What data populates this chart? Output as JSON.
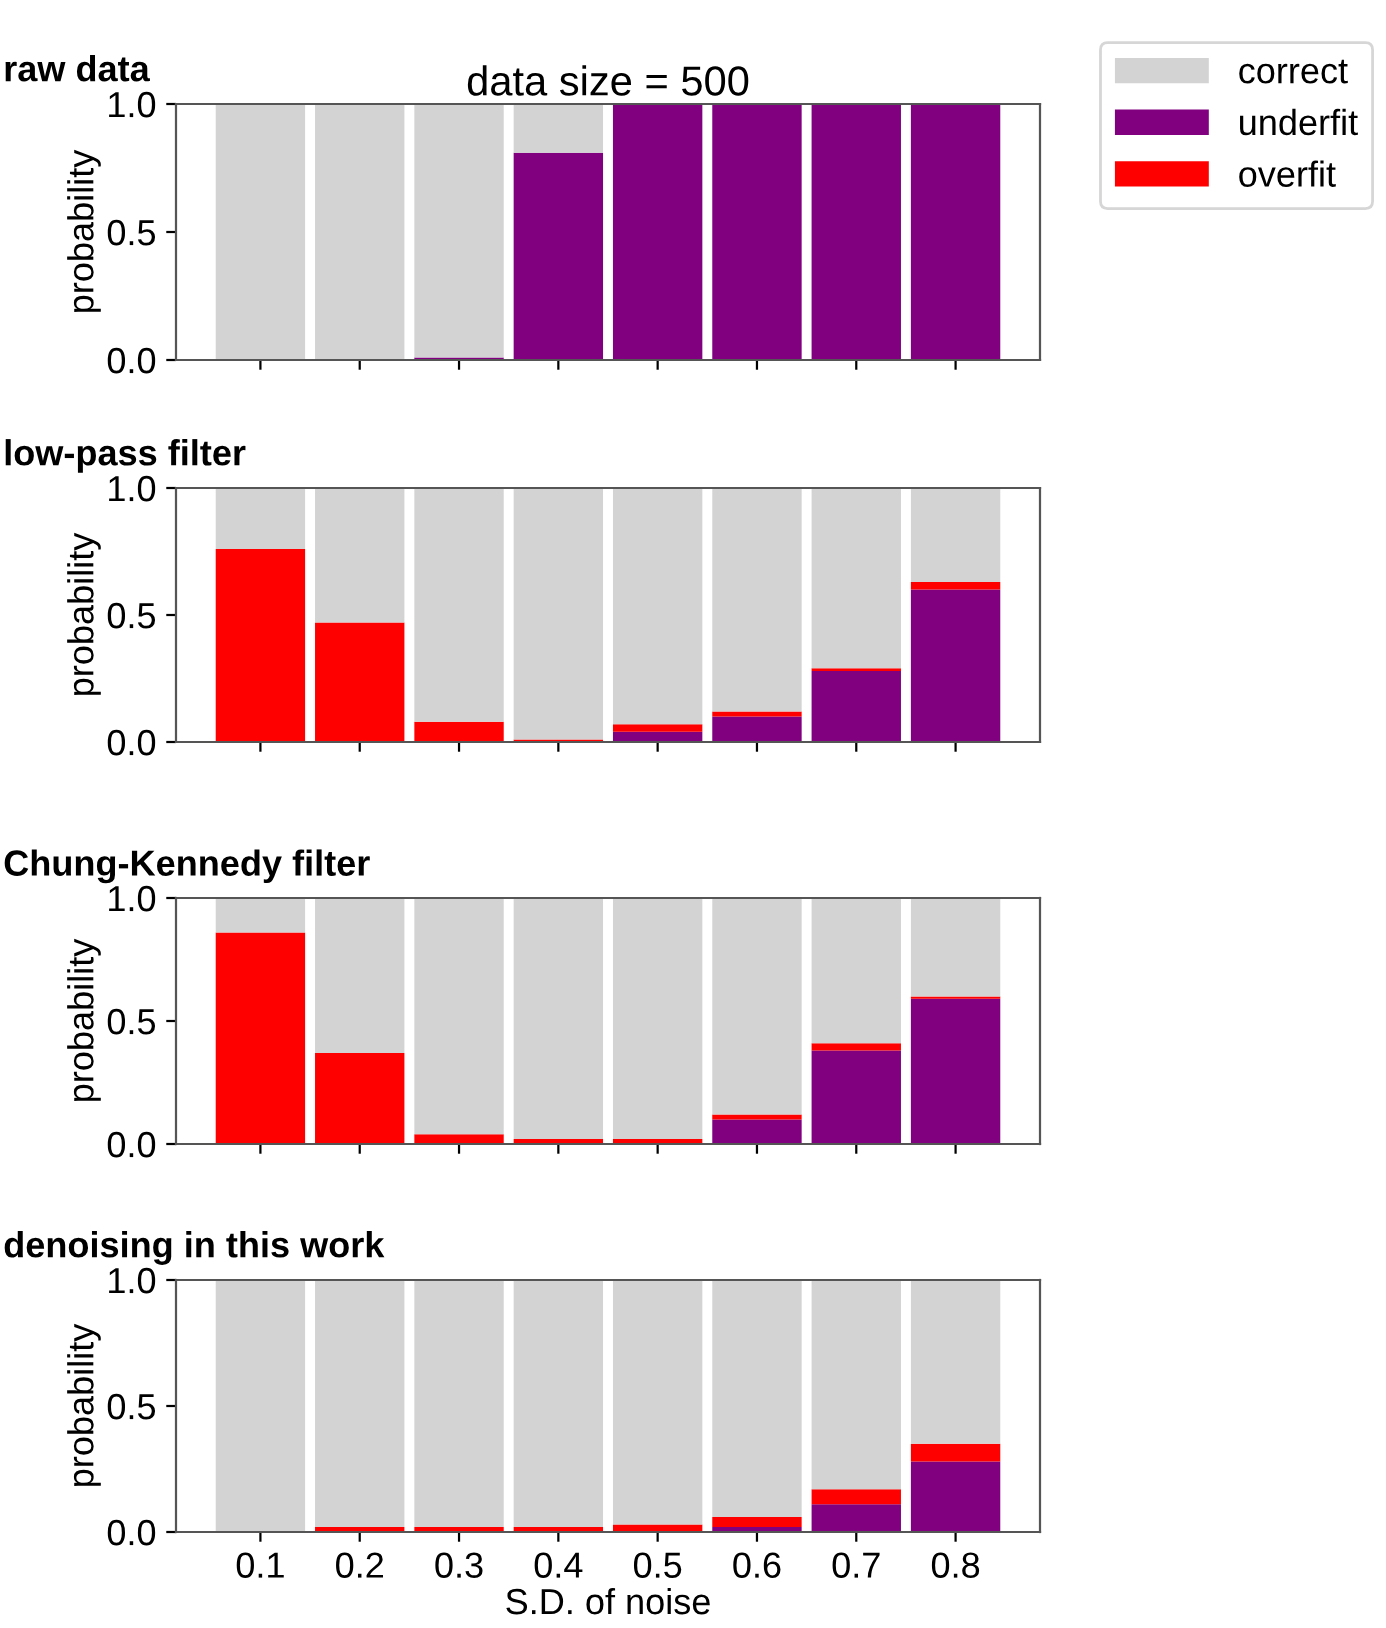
{
  "chart_data": [
    {
      "type": "bar",
      "title": "raw data",
      "subtitle": "data size = 500",
      "ylabel": "probability",
      "stacked": true,
      "legend": "top right",
      "tick_labels": "y",
      "categories": [
        "0.1",
        "0.2",
        "0.3",
        "0.4",
        "0.5",
        "0.6",
        "0.7",
        "0.8"
      ],
      "ylim": [
        0,
        1
      ],
      "yticks": [
        {
          "value": 0,
          "label": "0.0"
        },
        {
          "value": 0.5,
          "label": "0.5"
        },
        {
          "value": 1,
          "label": "1.0"
        }
      ],
      "series": [
        {
          "name": "underfit",
          "color": "#800080",
          "values": [
            0,
            0,
            0.01,
            0.81,
            1,
            1,
            1,
            1
          ]
        },
        {
          "name": "overfit",
          "color": "#ff0000",
          "values": [
            0,
            0,
            0,
            0,
            0,
            0,
            0,
            0
          ]
        },
        {
          "name": "correct",
          "color": "#d3d3d3",
          "values": [
            1,
            1,
            0.99,
            0.19,
            0,
            0,
            0,
            0
          ]
        }
      ]
    },
    {
      "type": "bar",
      "title": "low-pass filter",
      "ylabel": "probability",
      "stacked": true,
      "tick_labels": "y",
      "categories": [
        "0.1",
        "0.2",
        "0.3",
        "0.4",
        "0.5",
        "0.6",
        "0.7",
        "0.8"
      ],
      "ylim": [
        0,
        1
      ],
      "yticks": [
        {
          "value": 0,
          "label": "0.0"
        },
        {
          "value": 0.5,
          "label": "0.5"
        },
        {
          "value": 1,
          "label": "1.0"
        }
      ],
      "series": [
        {
          "color": "#800080",
          "values": [
            0,
            0,
            0,
            0,
            0.04,
            0.1,
            0.28,
            0.6
          ]
        },
        {
          "color": "#ff0000",
          "values": [
            0.76,
            0.47,
            0.08,
            0.01,
            0.03,
            0.02,
            0.01,
            0.03
          ]
        },
        {
          "color": "#d3d3d3",
          "values": [
            0.24,
            0.53,
            0.92,
            0.99,
            0.93,
            0.88,
            0.71,
            0.37
          ]
        }
      ]
    },
    {
      "type": "bar",
      "title": "Chung-Kennedy filter",
      "ylabel": "probability",
      "stacked": true,
      "tick_labels": "y",
      "categories": [
        "0.1",
        "0.2",
        "0.3",
        "0.4",
        "0.5",
        "0.6",
        "0.7",
        "0.8"
      ],
      "ylim": [
        0,
        1
      ],
      "yticks": [
        {
          "value": 0,
          "label": "0.0"
        },
        {
          "value": 0.5,
          "label": "0.5"
        },
        {
          "value": 1,
          "label": "1.0"
        }
      ],
      "series": [
        {
          "color": "#800080",
          "values": [
            0,
            0,
            0,
            0,
            0,
            0.1,
            0.38,
            0.59
          ]
        },
        {
          "color": "#ff0000",
          "values": [
            0.86,
            0.37,
            0.04,
            0.02,
            0.02,
            0.02,
            0.03,
            0.01
          ]
        },
        {
          "color": "#d3d3d3",
          "values": [
            0.14,
            0.63,
            0.96,
            0.98,
            0.98,
            0.88,
            0.59,
            0.4
          ]
        }
      ]
    },
    {
      "type": "bar",
      "title": "denoising in this work",
      "ylabel": "probability",
      "xlabel": "S.D. of noise",
      "stacked": true,
      "categories": [
        "0.1",
        "0.2",
        "0.3",
        "0.4",
        "0.5",
        "0.6",
        "0.7",
        "0.8"
      ],
      "ylim": [
        0,
        1
      ],
      "yticks": [
        {
          "value": 0,
          "label": "0.0"
        },
        {
          "value": 0.5,
          "label": "0.5"
        },
        {
          "value": 1,
          "label": "1.0"
        }
      ],
      "series": [
        {
          "color": "#800080",
          "values": [
            0,
            0,
            0,
            0,
            0,
            0.02,
            0.11,
            0.28
          ]
        },
        {
          "color": "#ff0000",
          "values": [
            0,
            0.02,
            0.02,
            0.02,
            0.03,
            0.04,
            0.06,
            0.07
          ]
        },
        {
          "color": "#d3d3d3",
          "values": [
            1,
            0.98,
            0.98,
            0.98,
            0.97,
            0.94,
            0.83,
            0.65
          ]
        }
      ]
    }
  ]
}
